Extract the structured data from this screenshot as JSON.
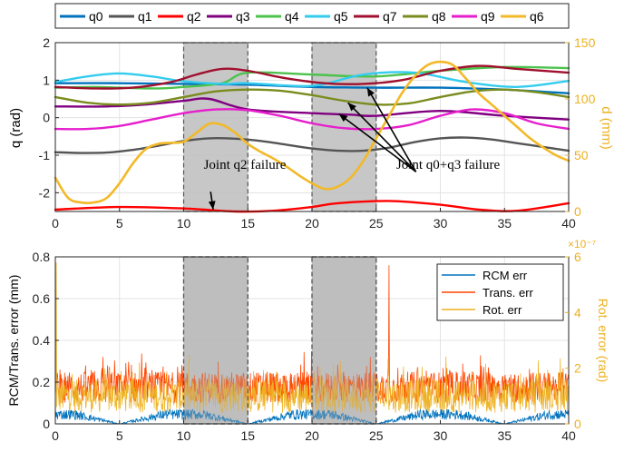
{
  "chart_data": [
    {
      "type": "line",
      "xlim": [
        0,
        40
      ],
      "xticks": [
        0,
        5,
        10,
        15,
        20,
        25,
        30,
        35,
        40
      ],
      "ylabel": "q (rad)",
      "ylim": [
        -2.5,
        2
      ],
      "yticks": [
        -2,
        -1,
        0,
        1,
        2
      ],
      "y2label": "d (mm)",
      "y2lim": [
        0,
        150
      ],
      "y2ticks": [
        0,
        50,
        100,
        150
      ],
      "grid": true,
      "legend_position": "top-outside",
      "shaded_intervals": [
        [
          10,
          15
        ],
        [
          20,
          25
        ]
      ],
      "annotations": [
        {
          "text": "Joint q2 failure",
          "x": 12.8,
          "y": -1.78,
          "arrows": [
            [
              12.3,
              -2.45
            ]
          ]
        },
        {
          "text": "Joint q0+q3 failure",
          "x": 32.5,
          "y": -1.78,
          "arrows": [
            [
              24.3,
              0.8
            ],
            [
              22.1,
              0.1
            ],
            [
              22.8,
              0.4
            ]
          ]
        }
      ],
      "series": [
        {
          "name": "q0",
          "color": "#0072BD",
          "axis": "left",
          "x": [
            0,
            5,
            10,
            15,
            20,
            25,
            30,
            35,
            40
          ],
          "y": [
            0.92,
            0.92,
            0.9,
            0.88,
            0.82,
            0.8,
            0.8,
            0.75,
            0.65
          ]
        },
        {
          "name": "q1",
          "color": "#555555",
          "axis": "left",
          "x": [
            0,
            2,
            4,
            6,
            8,
            10,
            12,
            14,
            16,
            18,
            20,
            22,
            24,
            26,
            28,
            30,
            32,
            34,
            36,
            38,
            40
          ],
          "y": [
            -0.92,
            -0.94,
            -0.93,
            -0.86,
            -0.75,
            -0.62,
            -0.55,
            -0.56,
            -0.62,
            -0.72,
            -0.82,
            -0.88,
            -0.88,
            -0.8,
            -0.65,
            -0.55,
            -0.53,
            -0.58,
            -0.68,
            -0.78,
            -0.88
          ]
        },
        {
          "name": "q2",
          "color": "#FF0000",
          "axis": "left",
          "x": [
            0,
            5,
            10,
            14,
            17,
            20,
            22,
            26,
            30,
            33,
            36,
            40
          ],
          "y": [
            -2.45,
            -2.38,
            -2.42,
            -2.5,
            -2.48,
            -2.38,
            -2.28,
            -2.22,
            -2.32,
            -2.45,
            -2.48,
            -2.28
          ]
        },
        {
          "name": "q3",
          "color": "#800080",
          "axis": "left",
          "x": [
            0,
            4,
            7,
            10,
            12,
            15,
            20,
            23,
            25,
            30,
            35,
            40
          ],
          "y": [
            0.3,
            0.3,
            0.35,
            0.45,
            0.5,
            0.22,
            0.12,
            0.08,
            0.05,
            0.18,
            0.05,
            -0.05
          ]
        },
        {
          "name": "q4",
          "color": "#4CC24C",
          "axis": "left",
          "x": [
            0,
            3,
            5,
            8,
            10,
            13,
            15,
            20,
            25,
            30,
            35,
            40
          ],
          "y": [
            0.8,
            0.82,
            0.8,
            0.78,
            0.82,
            0.92,
            1.2,
            1.15,
            1.1,
            1.25,
            1.35,
            1.32
          ]
        },
        {
          "name": "q5",
          "color": "#33CCEE",
          "axis": "left",
          "x": [
            0,
            2.5,
            5,
            7.5,
            10,
            13,
            15,
            20,
            24,
            28,
            32,
            36,
            40
          ],
          "y": [
            0.95,
            1.1,
            1.18,
            1.1,
            0.97,
            0.9,
            0.92,
            0.85,
            1.15,
            1.2,
            0.95,
            0.82,
            0.98
          ]
        },
        {
          "name": "q7",
          "color": "#A0102E",
          "axis": "left",
          "x": [
            0,
            3,
            6,
            9,
            11,
            13,
            15,
            18,
            21,
            24,
            27,
            30,
            33,
            36,
            40
          ],
          "y": [
            0.82,
            0.78,
            0.8,
            0.95,
            1.15,
            1.3,
            1.25,
            1.05,
            0.92,
            0.9,
            1.0,
            1.25,
            1.38,
            1.3,
            1.2
          ]
        },
        {
          "name": "q8",
          "color": "#7A8C1E",
          "axis": "left",
          "x": [
            0,
            2.5,
            5,
            7.5,
            10,
            12.5,
            15,
            17.5,
            20,
            22.5,
            25,
            27.5,
            30,
            32.5,
            35,
            37.5,
            40
          ],
          "y": [
            0.55,
            0.4,
            0.35,
            0.4,
            0.55,
            0.7,
            0.75,
            0.72,
            0.6,
            0.45,
            0.35,
            0.38,
            0.55,
            0.7,
            0.75,
            0.68,
            0.55
          ]
        },
        {
          "name": "q9",
          "color": "#E61ECC",
          "axis": "left",
          "x": [
            0,
            2.5,
            5,
            7.5,
            10,
            12.5,
            15,
            17.5,
            20,
            22.5,
            25,
            27.5,
            30,
            32.5,
            35,
            37.5,
            40
          ],
          "y": [
            -0.3,
            -0.3,
            -0.22,
            -0.05,
            0.12,
            0.22,
            0.2,
            0.05,
            -0.15,
            -0.28,
            -0.3,
            -0.2,
            0.05,
            0.22,
            0.12,
            -0.15,
            -0.3
          ]
        },
        {
          "name": "q6",
          "color": "#F2B928",
          "axis": "right",
          "x": [
            0,
            1,
            2,
            3,
            4,
            5,
            6,
            7,
            8,
            9,
            10,
            11,
            12,
            13,
            14,
            15,
            16,
            17,
            18,
            19,
            20,
            21,
            22,
            23,
            24,
            25,
            26,
            27,
            28,
            29,
            30,
            31,
            32,
            33,
            34,
            35,
            36,
            37,
            38,
            39,
            40
          ],
          "y": [
            30,
            12,
            8,
            8,
            12,
            25,
            42,
            55,
            60,
            61,
            62,
            70,
            78,
            77,
            70,
            60,
            53,
            47,
            40,
            32,
            25,
            20,
            22,
            30,
            45,
            65,
            85,
            105,
            120,
            130,
            133,
            130,
            118,
            105,
            95,
            85,
            75,
            65,
            57,
            50,
            45
          ]
        }
      ]
    },
    {
      "type": "line",
      "xlim": [
        0,
        40
      ],
      "xticks": [
        0,
        5,
        10,
        15,
        20,
        25,
        30,
        35,
        40
      ],
      "ylabel": "RCM/Trans. error (mm)",
      "ylim": [
        0,
        0.8
      ],
      "yticks": [
        0,
        0.2,
        0.4,
        0.6,
        0.8
      ],
      "y2label": "Rot. error (rad)",
      "y2lim": [
        0,
        6
      ],
      "y2ticks": [
        0,
        2,
        4,
        6
      ],
      "y2exponent": "×10⁻⁷",
      "grid": true,
      "legend_position": "top-right",
      "shaded_intervals": [
        [
          10,
          15
        ],
        [
          20,
          25
        ]
      ],
      "series": [
        {
          "name": "RCM err",
          "color": "#0072BD",
          "axis": "left",
          "description_level": "noisy 0-0.08, dips to 0 near 5, 15, 25, 35"
        },
        {
          "name": "Trans. err",
          "color": "#FF4500",
          "axis": "left",
          "baseline": 0.2,
          "noise_range": [
            0.1,
            0.35
          ],
          "spike": {
            "x": 26,
            "y": 0.76
          }
        },
        {
          "name": "Rot. err",
          "color": "#EDB120",
          "axis": "right",
          "baseline": 0.9,
          "noise_range": [
            0.2,
            2.4
          ],
          "spike": {
            "x": 0.1,
            "y": 5.8
          }
        }
      ]
    }
  ],
  "top": {
    "ylabel": "q (rad)",
    "y2label": "d (mm)",
    "legend": [
      "q0",
      "q1",
      "q2",
      "q3",
      "q4",
      "q5",
      "q7",
      "q8",
      "q9",
      "q6"
    ],
    "ann1": "Joint q2 failure",
    "ann2": "Joint q0+q3 failure",
    "xticks": [
      "0",
      "5",
      "10",
      "15",
      "20",
      "25",
      "30",
      "35",
      "40"
    ],
    "yticks": [
      "-2",
      "-1",
      "0",
      "1",
      "2"
    ],
    "y2ticks": [
      "0",
      "50",
      "100",
      "150"
    ]
  },
  "bottom": {
    "ylabel": "RCM/Trans. error (mm)",
    "y2label": "Rot. error (rad)",
    "exponent": "×10⁻⁷",
    "legend": [
      "RCM err",
      "Trans. err",
      "Rot. err"
    ],
    "xticks": [
      "0",
      "5",
      "10",
      "15",
      "20",
      "25",
      "30",
      "35",
      "40"
    ],
    "yticks": [
      "0",
      "0.2",
      "0.4",
      "0.6",
      "0.8"
    ],
    "y2ticks": [
      "0",
      "2",
      "4",
      "6"
    ]
  }
}
